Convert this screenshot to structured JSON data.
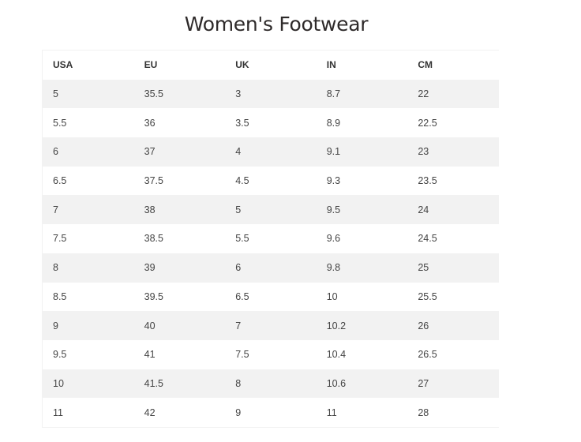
{
  "title": "Women's Footwear",
  "table": {
    "headers": [
      "USA",
      "EU",
      "UK",
      "IN",
      "CM"
    ],
    "rows": [
      [
        "5",
        "35.5",
        "3",
        "8.7",
        "22"
      ],
      [
        "5.5",
        "36",
        "3.5",
        "8.9",
        "22.5"
      ],
      [
        "6",
        "37",
        "4",
        "9.1",
        "23"
      ],
      [
        "6.5",
        "37.5",
        "4.5",
        "9.3",
        "23.5"
      ],
      [
        "7",
        "38",
        "5",
        "9.5",
        "24"
      ],
      [
        "7.5",
        "38.5",
        "5.5",
        "9.6",
        "24.5"
      ],
      [
        "8",
        "39",
        "6",
        "9.8",
        "25"
      ],
      [
        "8.5",
        "39.5",
        "6.5",
        "10",
        "25.5"
      ],
      [
        "9",
        "40",
        "7",
        "10.2",
        "26"
      ],
      [
        "9.5",
        "41",
        "7.5",
        "10.4",
        "26.5"
      ],
      [
        "10",
        "41.5",
        "8",
        "10.6",
        "27"
      ],
      [
        "11",
        "42",
        "9",
        "11",
        "28"
      ]
    ]
  },
  "colors": {
    "stripe": "#f2f2f2",
    "text": "#444444",
    "title": "#2e2a2a"
  }
}
